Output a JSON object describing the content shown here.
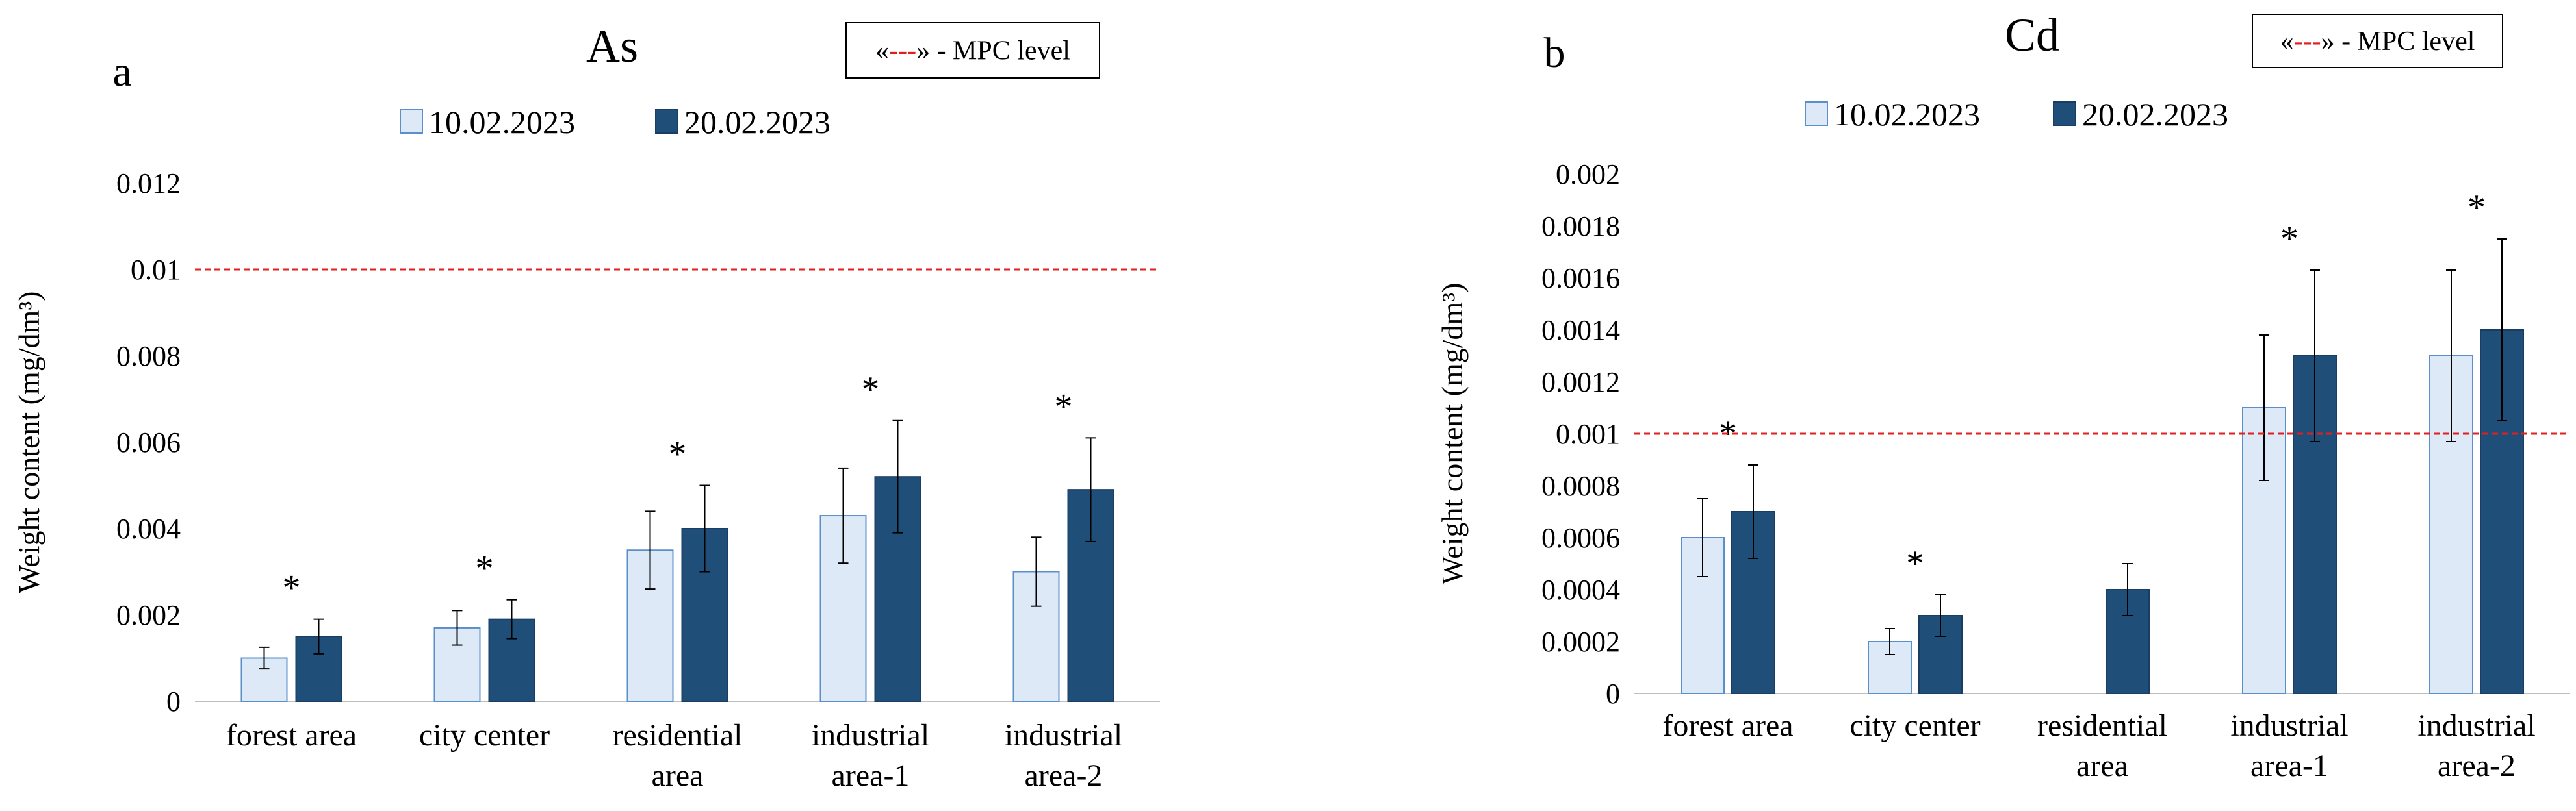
{
  "mpc_legend": {
    "open": "«",
    "dash": "---",
    "close": "»",
    "text": " - MPC level",
    "color": "#e02020"
  },
  "colors": {
    "series1_fill": "#dde9f6",
    "series1_stroke": "#5b8fc9",
    "series2_fill": "#1f4e79",
    "series2_stroke": "#1a3e63",
    "error_bar": "#000000"
  },
  "chart_data": [
    {
      "type": "bar",
      "panel_label": "a",
      "title": "As",
      "ylabel": "Weight content (mg/dm³)",
      "ylim": [
        0,
        0.012
      ],
      "yticks": [
        "0",
        "0.002",
        "0.004",
        "0.006",
        "0.008",
        "0.01",
        "0.012"
      ],
      "grid": false,
      "legend_position": "top-center",
      "categories": [
        [
          "forest area"
        ],
        [
          "city center"
        ],
        [
          "residential",
          "area"
        ],
        [
          "industrial",
          "area-1"
        ],
        [
          "industrial",
          "area-2"
        ]
      ],
      "series": [
        {
          "name": "10.02.2023",
          "values": [
            0.001,
            0.0017,
            0.0035,
            0.0043,
            0.003
          ],
          "errors": [
            0.00025,
            0.0004,
            0.0009,
            0.0011,
            0.0008
          ]
        },
        {
          "name": "20.02.2023",
          "values": [
            0.0015,
            0.0019,
            0.004,
            0.0052,
            0.0049
          ],
          "errors": [
            0.0004,
            0.00045,
            0.001,
            0.0013,
            0.0012
          ]
        }
      ],
      "mpc_level": 0.01,
      "significance_marks": [
        "*",
        "*",
        "*",
        "*",
        "*"
      ]
    },
    {
      "type": "bar",
      "panel_label": "b",
      "title": "Cd",
      "ylabel": "Weight content (mg/dm³)",
      "ylim": [
        0,
        0.002
      ],
      "yticks": [
        "0",
        "0.0002",
        "0.0004",
        "0.0006",
        "0.0008",
        "0.001",
        "0.0012",
        "0.0014",
        "0.0016",
        "0.0018",
        "0.002"
      ],
      "grid": false,
      "legend_position": "top-center",
      "categories": [
        [
          "forest area"
        ],
        [
          "city center"
        ],
        [
          "residential",
          "area"
        ],
        [
          "industrial",
          "area-1"
        ],
        [
          "industrial",
          "area-2"
        ]
      ],
      "series": [
        {
          "name": "10.02.2023",
          "values": [
            0.0006,
            0.0002,
            0,
            0.0011,
            0.0013
          ],
          "errors": [
            0.00015,
            5e-05,
            0,
            0.00028,
            0.00033
          ]
        },
        {
          "name": "20.02.2023",
          "values": [
            0.0007,
            0.0003,
            0.0004,
            0.0013,
            0.0014
          ],
          "errors": [
            0.00018,
            8e-05,
            0.0001,
            0.00033,
            0.00035
          ]
        }
      ],
      "mpc_level": 0.001,
      "significance_marks": [
        "*",
        "*",
        "",
        "*",
        "*"
      ]
    }
  ]
}
